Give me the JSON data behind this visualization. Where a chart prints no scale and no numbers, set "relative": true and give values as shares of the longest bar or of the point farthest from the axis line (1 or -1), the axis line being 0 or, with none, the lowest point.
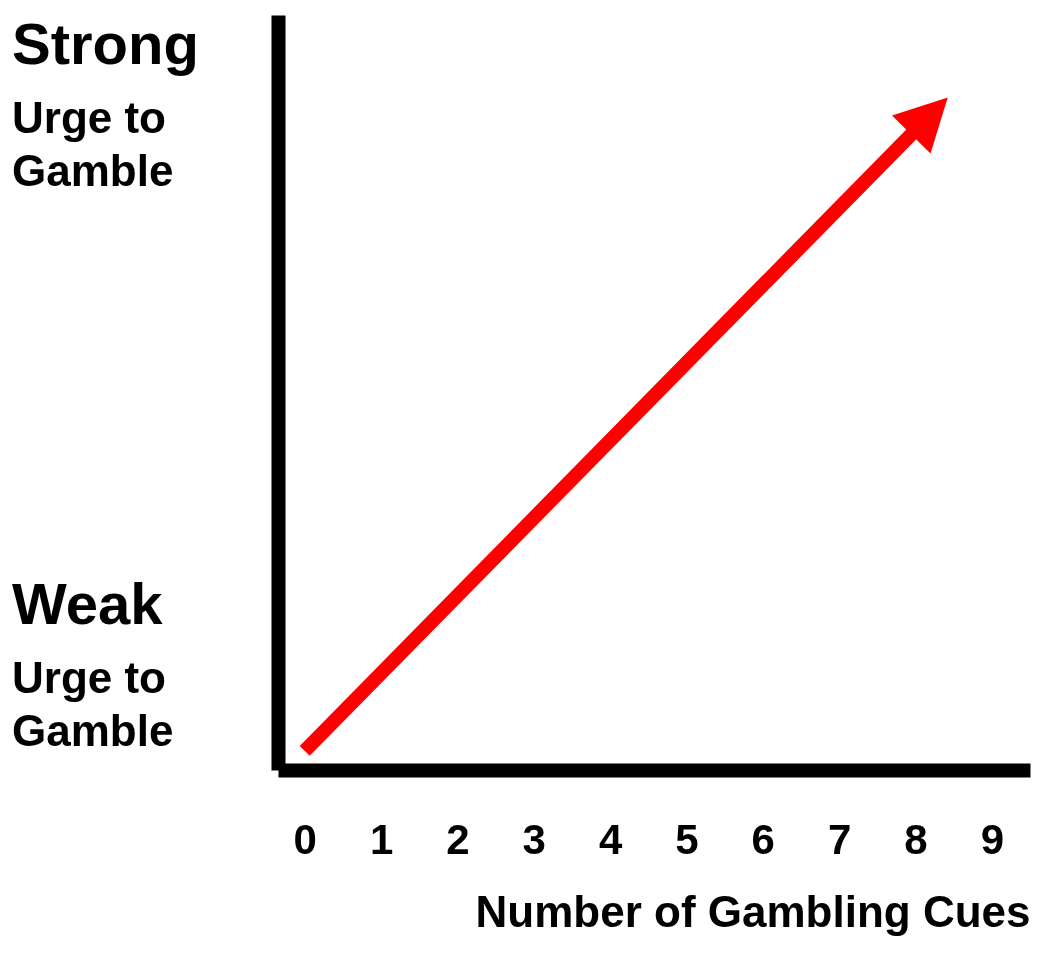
{
  "chart_data": {
    "type": "line",
    "xlabel": "Number of Gambling Cues",
    "x": [
      0,
      8
    ],
    "series": [
      {
        "color": "#ff0000",
        "values": [
          0.03,
          1
        ]
      }
    ],
    "relative": true,
    "xlim": [
      -0.35,
      9.5
    ],
    "xticks": [
      0,
      1,
      2,
      3,
      4,
      5,
      6,
      7,
      8,
      9
    ],
    "annotations": [
      "Strong",
      "Urge to Gamble",
      "Weak",
      "Urge to Gamble"
    ]
  }
}
